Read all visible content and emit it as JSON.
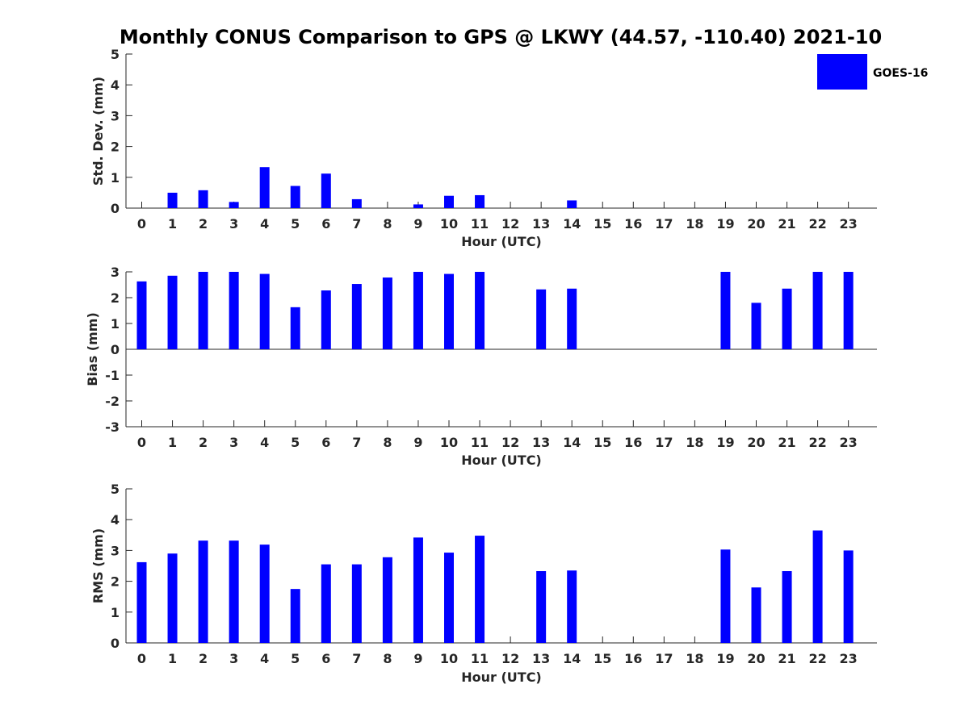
{
  "title": "Monthly CONUS Comparison to GPS @ LKWY (44.57, -110.40) 2021-10",
  "legend": {
    "label": "GOES-16",
    "color": "#0000ff"
  },
  "chart_data": [
    {
      "type": "bar",
      "categories": [
        "0",
        "1",
        "2",
        "3",
        "4",
        "5",
        "6",
        "7",
        "8",
        "9",
        "10",
        "11",
        "12",
        "13",
        "14",
        "15",
        "16",
        "17",
        "18",
        "19",
        "20",
        "21",
        "22",
        "23"
      ],
      "series": [
        {
          "name": "GOES-16",
          "values": [
            0,
            0.5,
            0.58,
            0.2,
            1.33,
            0.72,
            1.12,
            0.29,
            0,
            0.12,
            0.4,
            0.42,
            null,
            0,
            0.25,
            null,
            null,
            null,
            null,
            0,
            0,
            0,
            0,
            0
          ]
        }
      ],
      "xlabel": "Hour (UTC)",
      "ylabel": "Std. Dev. (mm)",
      "ylim": [
        0,
        5
      ],
      "yticks": [
        "0",
        "1",
        "2",
        "3",
        "4",
        "5"
      ],
      "legend": "top-right",
      "grid": false
    },
    {
      "type": "bar",
      "categories": [
        "0",
        "1",
        "2",
        "3",
        "4",
        "5",
        "6",
        "7",
        "8",
        "9",
        "10",
        "11",
        "12",
        "13",
        "14",
        "15",
        "16",
        "17",
        "18",
        "19",
        "20",
        "21",
        "22",
        "23"
      ],
      "series": [
        {
          "name": "GOES-16",
          "values": [
            2.63,
            2.85,
            3.0,
            3.0,
            2.92,
            1.63,
            2.28,
            2.53,
            2.78,
            3.0,
            2.92,
            3.0,
            null,
            2.32,
            2.35,
            null,
            null,
            null,
            null,
            3.0,
            1.8,
            2.35,
            3.0,
            3.0
          ]
        }
      ],
      "xlabel": "Hour (UTC)",
      "ylabel": "Bias (mm)",
      "ylim": [
        -3,
        3
      ],
      "yticks": [
        "-3",
        "-2",
        "-1",
        "0",
        "1",
        "2",
        "3"
      ],
      "grid": false
    },
    {
      "type": "bar",
      "categories": [
        "0",
        "1",
        "2",
        "3",
        "4",
        "5",
        "6",
        "7",
        "8",
        "9",
        "10",
        "11",
        "12",
        "13",
        "14",
        "15",
        "16",
        "17",
        "18",
        "19",
        "20",
        "21",
        "22",
        "23"
      ],
      "series": [
        {
          "name": "GOES-16",
          "values": [
            2.62,
            2.9,
            3.32,
            3.32,
            3.19,
            1.75,
            2.55,
            2.55,
            2.78,
            3.42,
            2.93,
            3.48,
            null,
            2.33,
            2.35,
            null,
            null,
            null,
            null,
            3.03,
            1.8,
            2.33,
            3.65,
            3.0
          ]
        }
      ],
      "xlabel": "Hour (UTC)",
      "ylabel": "RMS (mm)",
      "ylim": [
        0,
        5
      ],
      "yticks": [
        "0",
        "1",
        "2",
        "3",
        "4",
        "5"
      ],
      "grid": false
    }
  ]
}
